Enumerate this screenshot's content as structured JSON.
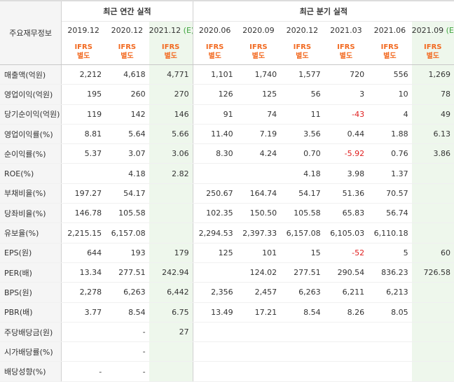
{
  "header": {
    "corner": "주요재무정보",
    "annual_title": "최근 연간 실적",
    "quarter_title": "최근 분기 실적",
    "periods": [
      {
        "label": "2019.12",
        "est": ""
      },
      {
        "label": "2020.12",
        "est": ""
      },
      {
        "label": "2021.12",
        "est": "(E)"
      },
      {
        "label": "2020.06",
        "est": ""
      },
      {
        "label": "2020.09",
        "est": ""
      },
      {
        "label": "2020.12",
        "est": ""
      },
      {
        "label": "2021.03",
        "est": ""
      },
      {
        "label": "2021.06",
        "est": ""
      },
      {
        "label": "2021.09",
        "est": "(E)"
      }
    ],
    "standard_line1": "IFRS",
    "standard_line2": "별도"
  },
  "rows": [
    {
      "label": "매출액(억원)",
      "values": [
        "2,212",
        "4,618",
        "4,771",
        "1,101",
        "1,740",
        "1,577",
        "720",
        "556",
        "1,269"
      ]
    },
    {
      "label": "영업이익(억원)",
      "values": [
        "195",
        "260",
        "270",
        "126",
        "125",
        "56",
        "3",
        "10",
        "78"
      ]
    },
    {
      "label": "당기순이익(억원)",
      "values": [
        "119",
        "142",
        "146",
        "91",
        "74",
        "11",
        "-43",
        "4",
        "49"
      ]
    },
    {
      "label": "영업이익률(%)",
      "values": [
        "8.81",
        "5.64",
        "5.66",
        "11.40",
        "7.19",
        "3.56",
        "0.44",
        "1.88",
        "6.13"
      ]
    },
    {
      "label": "순이익률(%)",
      "values": [
        "5.37",
        "3.07",
        "3.06",
        "8.30",
        "4.24",
        "0.70",
        "-5.92",
        "0.76",
        "3.86"
      ]
    },
    {
      "label": "ROE(%)",
      "values": [
        "",
        "4.18",
        "2.82",
        "",
        "",
        "4.18",
        "3.98",
        "1.37",
        ""
      ]
    },
    {
      "label": "부채비율(%)",
      "values": [
        "197.27",
        "54.17",
        "",
        "250.67",
        "164.74",
        "54.17",
        "51.36",
        "70.57",
        ""
      ]
    },
    {
      "label": "당좌비율(%)",
      "values": [
        "146.78",
        "105.58",
        "",
        "102.35",
        "150.50",
        "105.58",
        "65.83",
        "56.74",
        ""
      ]
    },
    {
      "label": "유보율(%)",
      "values": [
        "2,215.15",
        "6,157.08",
        "",
        "2,294.53",
        "2,397.33",
        "6,157.08",
        "6,105.03",
        "6,110.18",
        ""
      ]
    },
    {
      "label": "EPS(원)",
      "values": [
        "644",
        "193",
        "179",
        "125",
        "101",
        "15",
        "-52",
        "5",
        "60"
      ]
    },
    {
      "label": "PER(배)",
      "values": [
        "13.34",
        "277.51",
        "242.94",
        "",
        "124.02",
        "277.51",
        "290.54",
        "836.23",
        "726.58"
      ]
    },
    {
      "label": "BPS(원)",
      "values": [
        "2,278",
        "6,263",
        "6,442",
        "2,356",
        "2,457",
        "6,263",
        "6,211",
        "6,213",
        ""
      ]
    },
    {
      "label": "PBR(배)",
      "values": [
        "3.77",
        "8.54",
        "6.75",
        "13.49",
        "17.21",
        "8.54",
        "8.26",
        "8.05",
        ""
      ]
    },
    {
      "label": "주당배당금(원)",
      "values": [
        "",
        "-",
        "27",
        "",
        "",
        "",
        "",
        "",
        ""
      ]
    },
    {
      "label": "시가배당률(%)",
      "values": [
        "",
        "-",
        "",
        "",
        "",
        "",
        "",
        "",
        ""
      ]
    },
    {
      "label": "배당성향(%)",
      "values": [
        "-",
        "-",
        "",
        "",
        "",
        "",
        "",
        "",
        ""
      ]
    }
  ],
  "group_starts": [
    3,
    6,
    9,
    13
  ],
  "colors": {
    "ifrs": "#f26a21",
    "estimate_bg": "#eef7ec",
    "label_bg": "#f5f5f5",
    "negative": "#e02020",
    "estimate_tag": "#3fa53f"
  }
}
